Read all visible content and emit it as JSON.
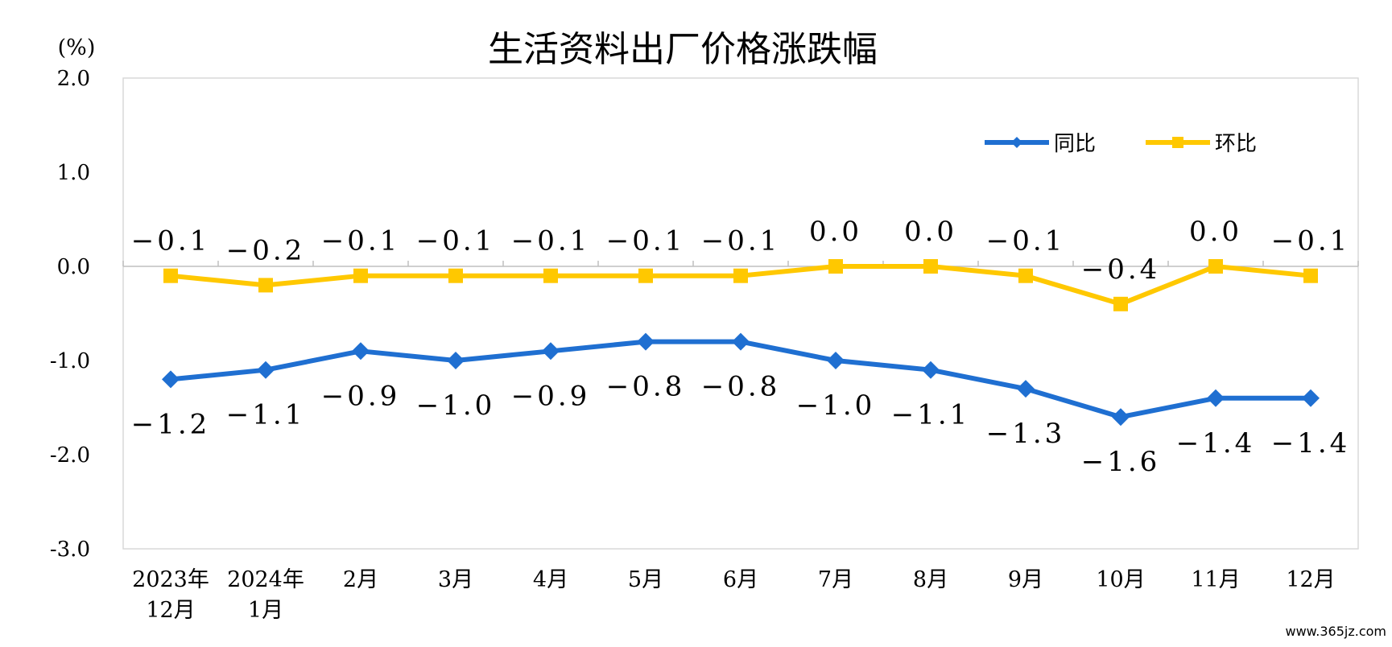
{
  "chart_data": {
    "type": "line",
    "title": "生活资料出厂价格涨跌幅",
    "unit_label": "(%)",
    "ylim": [
      -3.0,
      2.0
    ],
    "yticks": [
      "2.0",
      "1.0",
      "0.0",
      "-1.0",
      "-2.0",
      "-3.0"
    ],
    "ytick_values": [
      2.0,
      1.0,
      0.0,
      -1.0,
      -2.0,
      -3.0
    ],
    "categories": [
      [
        "2023年",
        "12月"
      ],
      [
        "2024年",
        "1月"
      ],
      [
        "2月"
      ],
      [
        "3月"
      ],
      [
        "4月"
      ],
      [
        "5月"
      ],
      [
        "6月"
      ],
      [
        "7月"
      ],
      [
        "8月"
      ],
      [
        "9月"
      ],
      [
        "10月"
      ],
      [
        "11月"
      ],
      [
        "12月"
      ]
    ],
    "series": [
      {
        "name": "同比",
        "color": "#1F6FD1",
        "marker": "diamond",
        "values": [
          -1.2,
          -1.1,
          -0.9,
          -1.0,
          -0.9,
          -0.8,
          -0.8,
          -1.0,
          -1.1,
          -1.3,
          -1.6,
          -1.4,
          -1.4
        ],
        "labels": [
          "−1.2",
          "−1.1",
          "−0.9",
          "−1.0",
          "−0.9",
          "−0.8",
          "−0.8",
          "−1.0",
          "−1.1",
          "−1.3",
          "−1.6",
          "−1.4",
          "−1.4"
        ],
        "label_position": "below"
      },
      {
        "name": "环比",
        "color": "#FFC800",
        "marker": "square",
        "values": [
          -0.1,
          -0.2,
          -0.1,
          -0.1,
          -0.1,
          -0.1,
          -0.1,
          0.0,
          0.0,
          -0.1,
          -0.4,
          0.0,
          -0.1
        ],
        "labels": [
          "−0.1",
          "−0.2",
          "−0.1",
          "−0.1",
          "−0.1",
          "−0.1",
          "−0.1",
          "0.0",
          "0.0",
          "−0.1",
          "−0.4",
          "0.0",
          "−0.1"
        ],
        "label_position": "above"
      }
    ],
    "legend_position": "top-right",
    "grid": false
  },
  "watermark": "www.365jz.com"
}
